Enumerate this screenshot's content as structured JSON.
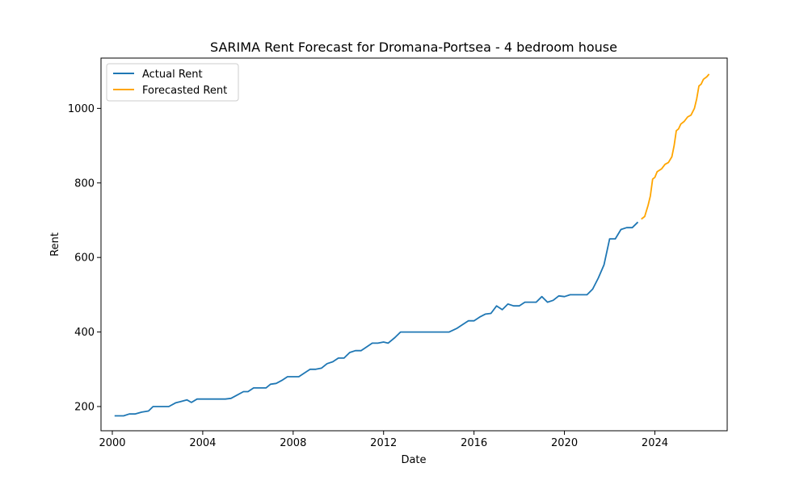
{
  "chart_data": {
    "type": "line",
    "title": "SARIMA Rent Forecast for Dromana-Portsea - 4 bedroom house",
    "xlabel": "Date",
    "ylabel": "Rent",
    "xlim": [
      1999.5,
      2027.2
    ],
    "ylim": [
      135,
      1135
    ],
    "x_ticks": [
      2000,
      2004,
      2008,
      2012,
      2016,
      2020,
      2024
    ],
    "x_tick_labels": [
      "2000",
      "2004",
      "2008",
      "2012",
      "2016",
      "2020",
      "2024"
    ],
    "y_ticks": [
      200,
      400,
      600,
      800,
      1000
    ],
    "y_tick_labels": [
      "200",
      "400",
      "600",
      "800",
      "1000"
    ],
    "grid": false,
    "legend_position": "top-left",
    "series": [
      {
        "name": "Actual Rent",
        "color": "#1f77b4",
        "points": [
          [
            2000.1,
            175
          ],
          [
            2000.5,
            175
          ],
          [
            2000.75,
            180
          ],
          [
            2001.0,
            180
          ],
          [
            2001.3,
            185
          ],
          [
            2001.6,
            188
          ],
          [
            2001.8,
            200
          ],
          [
            2002.0,
            200
          ],
          [
            2002.5,
            200
          ],
          [
            2002.8,
            210
          ],
          [
            2003.0,
            213
          ],
          [
            2003.3,
            218
          ],
          [
            2003.5,
            211
          ],
          [
            2003.75,
            220
          ],
          [
            2004.0,
            220
          ],
          [
            2004.5,
            220
          ],
          [
            2005.0,
            220
          ],
          [
            2005.25,
            222
          ],
          [
            2005.5,
            230
          ],
          [
            2005.8,
            240
          ],
          [
            2006.0,
            240
          ],
          [
            2006.25,
            250
          ],
          [
            2006.5,
            250
          ],
          [
            2006.8,
            250
          ],
          [
            2007.0,
            260
          ],
          [
            2007.25,
            262
          ],
          [
            2007.5,
            270
          ],
          [
            2007.75,
            280
          ],
          [
            2008.0,
            280
          ],
          [
            2008.25,
            280
          ],
          [
            2008.5,
            290
          ],
          [
            2008.75,
            300
          ],
          [
            2009.0,
            300
          ],
          [
            2009.25,
            303
          ],
          [
            2009.5,
            315
          ],
          [
            2009.75,
            320
          ],
          [
            2010.0,
            330
          ],
          [
            2010.25,
            330
          ],
          [
            2010.5,
            345
          ],
          [
            2010.75,
            350
          ],
          [
            2011.0,
            350
          ],
          [
            2011.25,
            360
          ],
          [
            2011.5,
            370
          ],
          [
            2011.75,
            370
          ],
          [
            2012.0,
            373
          ],
          [
            2012.2,
            370
          ],
          [
            2012.5,
            385
          ],
          [
            2012.75,
            400
          ],
          [
            2013.0,
            400
          ],
          [
            2014.0,
            400
          ],
          [
            2014.9,
            400
          ],
          [
            2015.25,
            410
          ],
          [
            2015.5,
            420
          ],
          [
            2015.75,
            430
          ],
          [
            2016.0,
            430
          ],
          [
            2016.25,
            440
          ],
          [
            2016.5,
            448
          ],
          [
            2016.75,
            450
          ],
          [
            2017.0,
            470
          ],
          [
            2017.25,
            460
          ],
          [
            2017.5,
            475
          ],
          [
            2017.75,
            470
          ],
          [
            2018.0,
            470
          ],
          [
            2018.25,
            480
          ],
          [
            2018.5,
            480
          ],
          [
            2018.75,
            480
          ],
          [
            2019.0,
            495
          ],
          [
            2019.25,
            480
          ],
          [
            2019.5,
            485
          ],
          [
            2019.75,
            497
          ],
          [
            2020.0,
            495
          ],
          [
            2020.25,
            500
          ],
          [
            2020.5,
            500
          ],
          [
            2021.0,
            500
          ],
          [
            2021.25,
            515
          ],
          [
            2021.5,
            545
          ],
          [
            2021.75,
            580
          ],
          [
            2022.0,
            650
          ],
          [
            2022.25,
            650
          ],
          [
            2022.5,
            675
          ],
          [
            2022.75,
            680
          ],
          [
            2023.0,
            680
          ],
          [
            2023.25,
            695
          ]
        ]
      },
      {
        "name": "Forecasted Rent",
        "color": "#ffa500",
        "points": [
          [
            2023.4,
            703
          ],
          [
            2023.55,
            710
          ],
          [
            2023.7,
            740
          ],
          [
            2023.8,
            765
          ],
          [
            2023.9,
            810
          ],
          [
            2024.0,
            815
          ],
          [
            2024.1,
            830
          ],
          [
            2024.3,
            838
          ],
          [
            2024.45,
            850
          ],
          [
            2024.6,
            855
          ],
          [
            2024.75,
            870
          ],
          [
            2024.85,
            900
          ],
          [
            2024.95,
            940
          ],
          [
            2025.05,
            945
          ],
          [
            2025.15,
            958
          ],
          [
            2025.3,
            965
          ],
          [
            2025.45,
            977
          ],
          [
            2025.6,
            982
          ],
          [
            2025.75,
            1000
          ],
          [
            2025.85,
            1025
          ],
          [
            2025.95,
            1060
          ],
          [
            2026.05,
            1065
          ],
          [
            2026.15,
            1078
          ],
          [
            2026.3,
            1085
          ],
          [
            2026.4,
            1092
          ]
        ]
      }
    ]
  }
}
